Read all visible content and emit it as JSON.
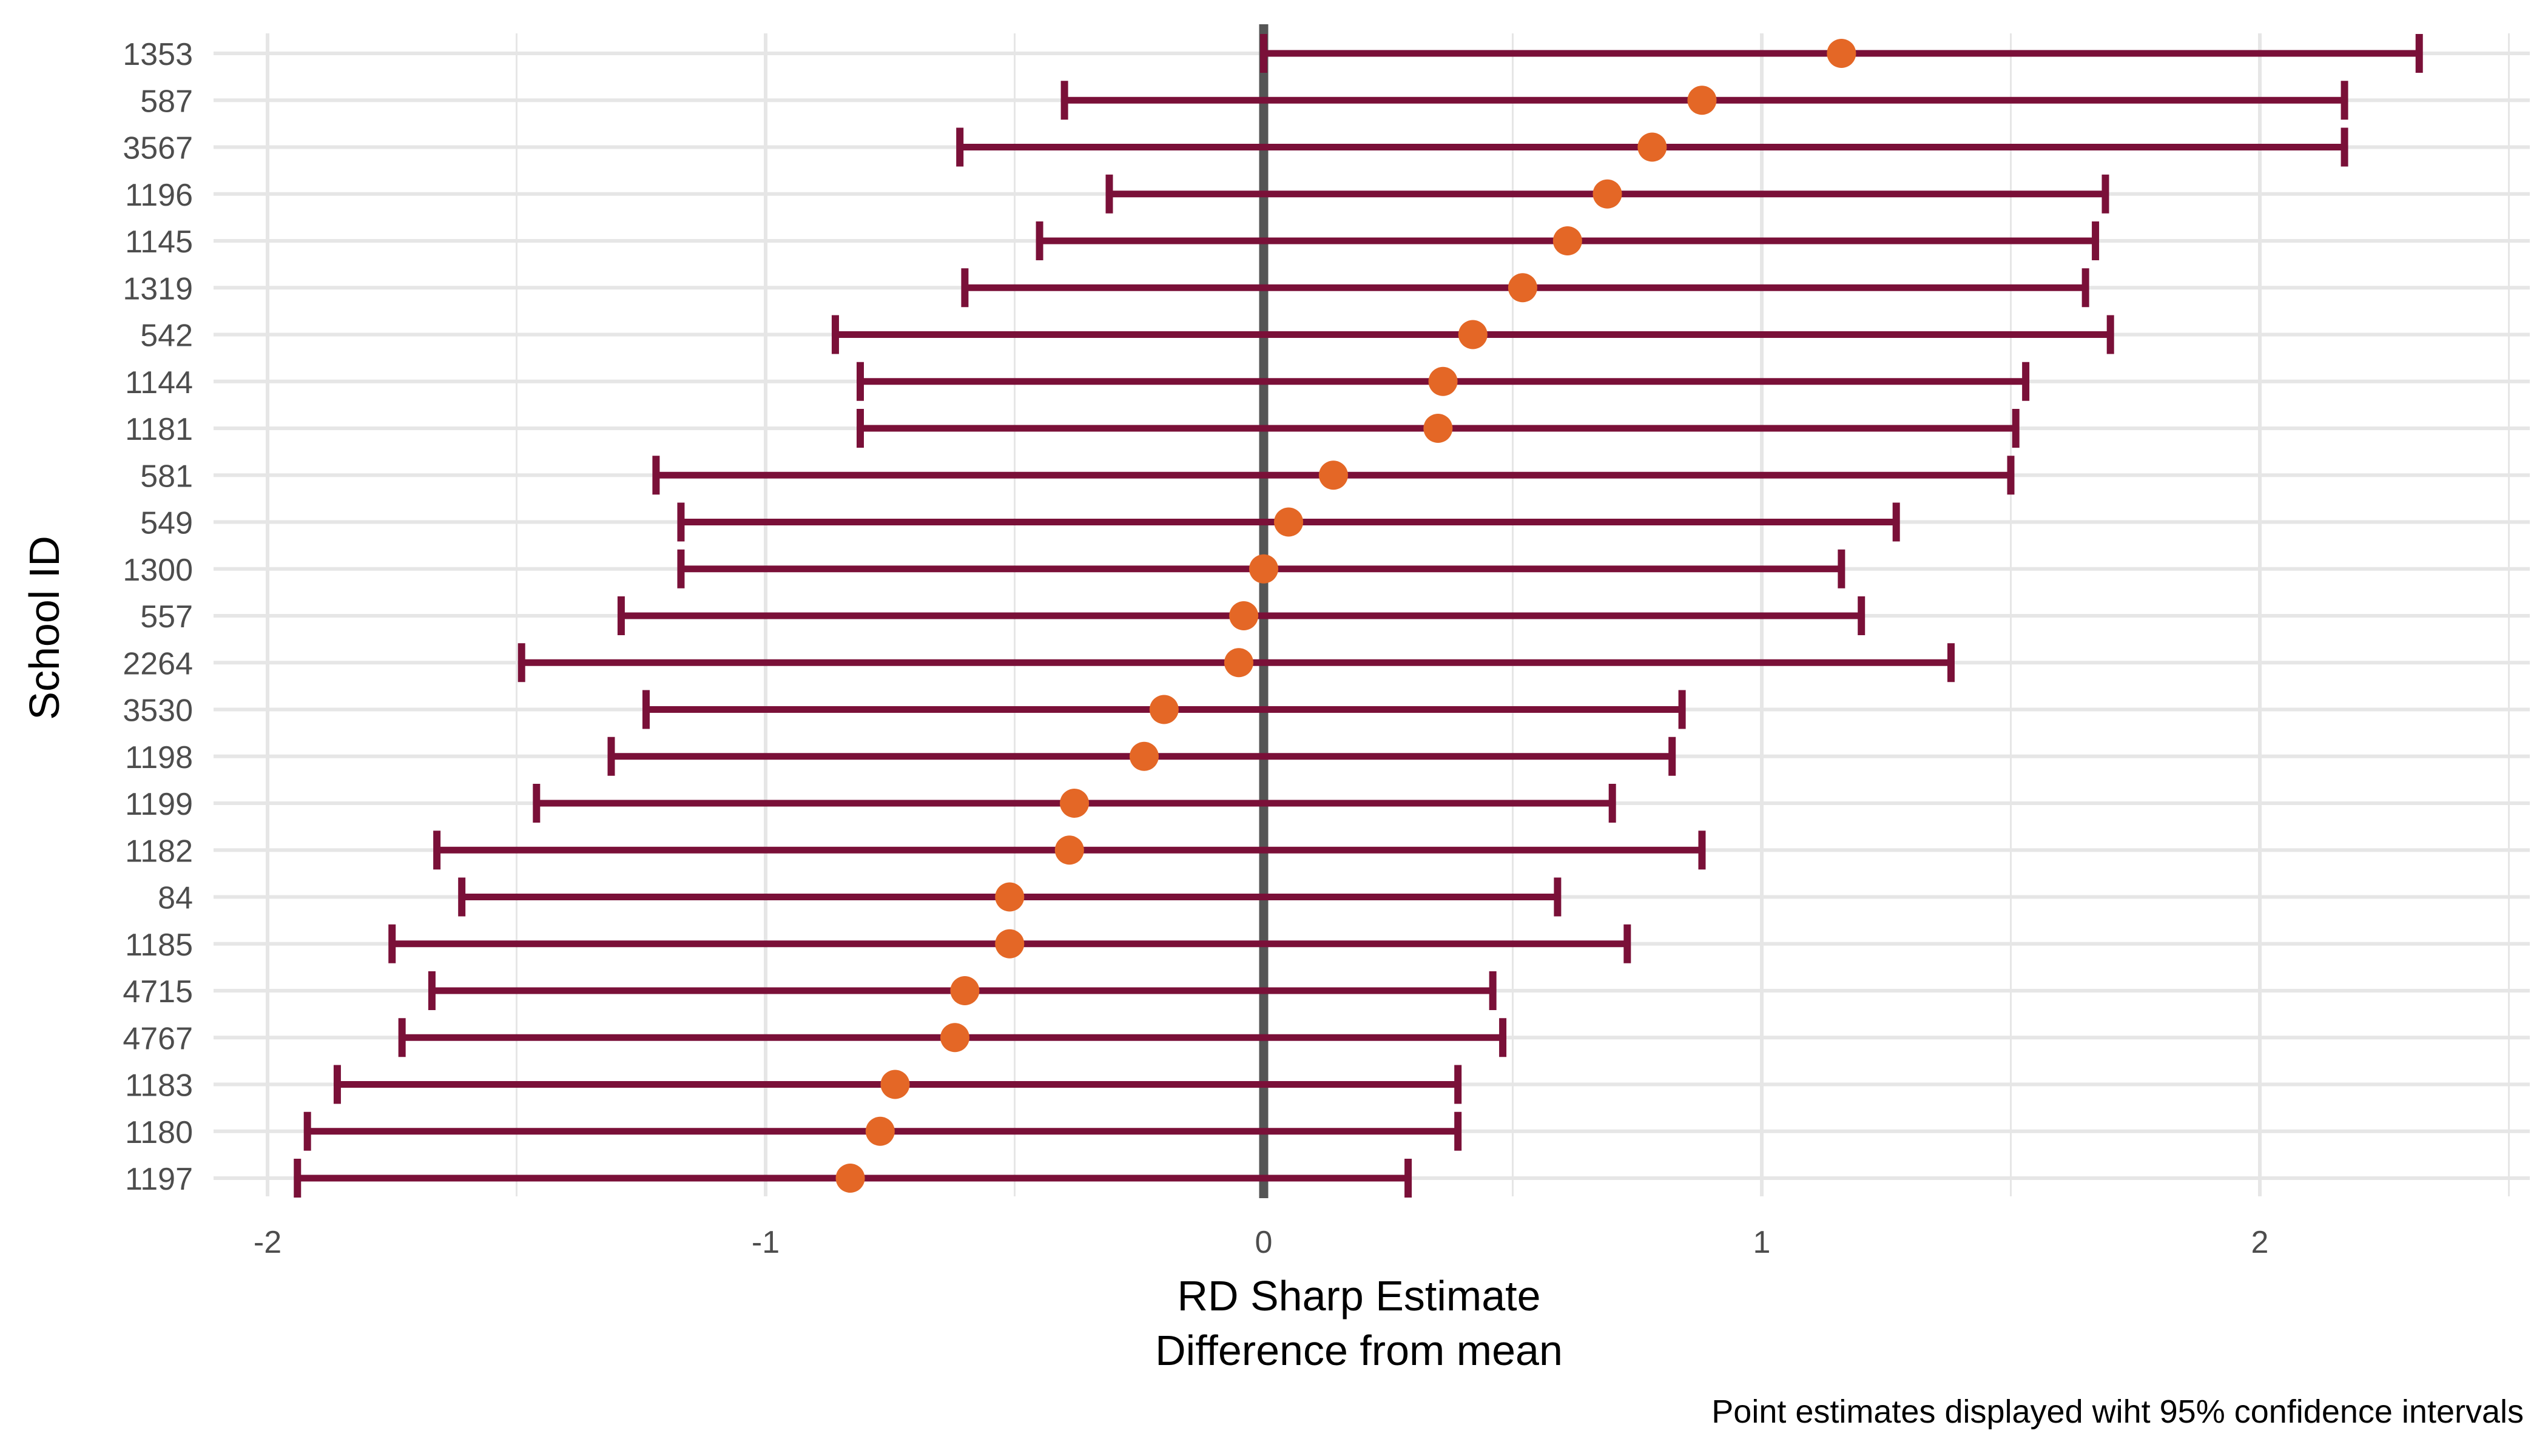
{
  "chart_data": {
    "type": "scatter",
    "subtype": "forest-plot-with-error-bars",
    "xlabel": "RD Sharp Estimate",
    "xlabel_line2": "Difference from mean",
    "ylabel": "School ID",
    "caption": "Point estimates displayed wiht 95% confidence intervals",
    "xlim": [
      -2.1,
      2.5
    ],
    "x_ticks": [
      -2,
      -1,
      0,
      1,
      2
    ],
    "x_tick_labels": [
      "-2",
      "-1",
      "0",
      "1",
      "2"
    ],
    "reference_line_x": 0,
    "grid": true,
    "colors": {
      "point": "#E46726",
      "interval": "#7A1038",
      "reference_line": "#555555",
      "grid": "#e6e6e6"
    },
    "rows": [
      {
        "id": "1353",
        "estimate": 1.16,
        "lower": 0.0,
        "upper": 2.32
      },
      {
        "id": "587",
        "estimate": 0.88,
        "lower": -0.4,
        "upper": 2.17
      },
      {
        "id": "3567",
        "estimate": 0.78,
        "lower": -0.61,
        "upper": 2.17
      },
      {
        "id": "1196",
        "estimate": 0.69,
        "lower": -0.31,
        "upper": 1.69
      },
      {
        "id": "1145",
        "estimate": 0.61,
        "lower": -0.45,
        "upper": 1.67
      },
      {
        "id": "1319",
        "estimate": 0.52,
        "lower": -0.6,
        "upper": 1.65
      },
      {
        "id": "542",
        "estimate": 0.42,
        "lower": -0.86,
        "upper": 1.7
      },
      {
        "id": "1144",
        "estimate": 0.36,
        "lower": -0.81,
        "upper": 1.53
      },
      {
        "id": "1181",
        "estimate": 0.35,
        "lower": -0.81,
        "upper": 1.51
      },
      {
        "id": "581",
        "estimate": 0.14,
        "lower": -1.22,
        "upper": 1.5
      },
      {
        "id": "549",
        "estimate": 0.05,
        "lower": -1.17,
        "upper": 1.27
      },
      {
        "id": "1300",
        "estimate": 0.0,
        "lower": -1.17,
        "upper": 1.16
      },
      {
        "id": "557",
        "estimate": -0.04,
        "lower": -1.29,
        "upper": 1.2
      },
      {
        "id": "2264",
        "estimate": -0.05,
        "lower": -1.49,
        "upper": 1.38
      },
      {
        "id": "3530",
        "estimate": -0.2,
        "lower": -1.24,
        "upper": 0.84
      },
      {
        "id": "1198",
        "estimate": -0.24,
        "lower": -1.31,
        "upper": 0.82
      },
      {
        "id": "1199",
        "estimate": -0.38,
        "lower": -1.46,
        "upper": 0.7
      },
      {
        "id": "1182",
        "estimate": -0.39,
        "lower": -1.66,
        "upper": 0.88
      },
      {
        "id": "84",
        "estimate": -0.51,
        "lower": -1.61,
        "upper": 0.59
      },
      {
        "id": "1185",
        "estimate": -0.51,
        "lower": -1.75,
        "upper": 0.73
      },
      {
        "id": "4715",
        "estimate": -0.6,
        "lower": -1.67,
        "upper": 0.46
      },
      {
        "id": "4767",
        "estimate": -0.62,
        "lower": -1.73,
        "upper": 0.48
      },
      {
        "id": "1183",
        "estimate": -0.74,
        "lower": -1.86,
        "upper": 0.39
      },
      {
        "id": "1180",
        "estimate": -0.77,
        "lower": -1.92,
        "upper": 0.39
      },
      {
        "id": "1197",
        "estimate": -0.83,
        "lower": -1.94,
        "upper": 0.29
      }
    ]
  }
}
